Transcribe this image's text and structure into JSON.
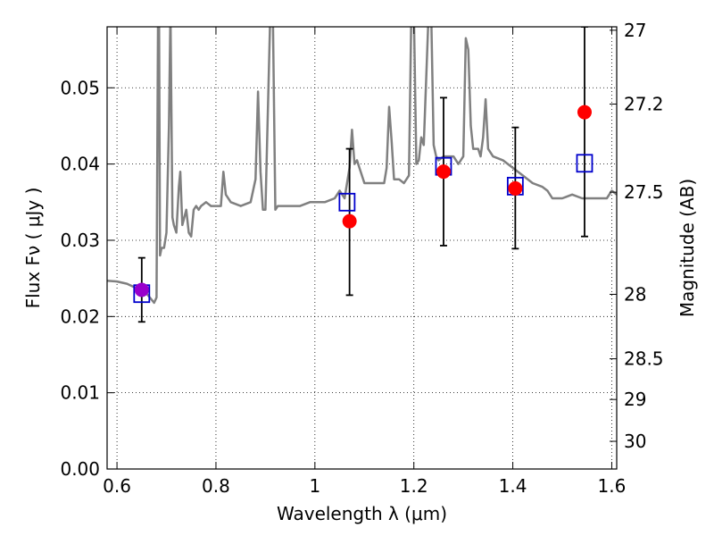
{
  "chart_data": {
    "type": "scatter",
    "xlabel": "Wavelength  λ (μm)",
    "ylabel": "Flux  Fν  ( μJy )",
    "y2label": "Magnitude (AB)",
    "xlim": [
      0.58,
      1.61
    ],
    "ylim": [
      0.0,
      0.058
    ],
    "x_ticks": [
      0.6,
      0.8,
      1.0,
      1.2,
      1.4,
      1.6
    ],
    "x_tick_labels": [
      "0.6",
      "0.8",
      "1",
      "1.2",
      "1.4",
      "1.6"
    ],
    "y_ticks": [
      0.0,
      0.01,
      0.02,
      0.03,
      0.04,
      0.05
    ],
    "y_tick_labels": [
      "0.00",
      "0.01",
      "0.02",
      "0.03",
      "0.04",
      "0.05"
    ],
    "mag_ticks": [
      27,
      27.2,
      27.5,
      28,
      28.5,
      29,
      30
    ],
    "mag_tick_labels": [
      "27",
      "27.2",
      "27.5",
      "28",
      "28.5",
      "29",
      "30"
    ],
    "grid": true,
    "colors": {
      "sed": "#808080",
      "observed": "#ff0000",
      "model": "#0000cc",
      "errorbar": "#000000",
      "overlap": "#9900cc"
    },
    "observed": {
      "x": [
        0.65,
        1.07,
        1.26,
        1.405,
        1.545
      ],
      "y": [
        0.0235,
        0.0325,
        0.039,
        0.0368,
        0.0468
      ],
      "yerr_low": [
        0.0042,
        0.0097,
        0.0097,
        0.0079,
        0.0163
      ],
      "yerr_high": [
        0.0042,
        0.0095,
        0.0097,
        0.008,
        0.0112
      ]
    },
    "model_photometry": {
      "x": [
        0.65,
        1.065,
        1.26,
        1.405,
        1.545
      ],
      "y": [
        0.023,
        0.035,
        0.0397,
        0.0371,
        0.0401
      ]
    },
    "sed": {
      "x": [
        0.58,
        0.6,
        0.62,
        0.64,
        0.66,
        0.67,
        0.675,
        0.68,
        0.683,
        0.685,
        0.687,
        0.69,
        0.695,
        0.7,
        0.705,
        0.708,
        0.712,
        0.715,
        0.72,
        0.725,
        0.728,
        0.732,
        0.74,
        0.745,
        0.75,
        0.755,
        0.76,
        0.765,
        0.77,
        0.78,
        0.79,
        0.8,
        0.81,
        0.815,
        0.82,
        0.83,
        0.85,
        0.87,
        0.88,
        0.885,
        0.89,
        0.895,
        0.9,
        0.91,
        0.915,
        0.92,
        0.925,
        0.93,
        0.95,
        0.97,
        0.99,
        1.0,
        1.02,
        1.04,
        1.05,
        1.06,
        1.07,
        1.075,
        1.08,
        1.085,
        1.09,
        1.1,
        1.12,
        1.14,
        1.145,
        1.15,
        1.155,
        1.16,
        1.17,
        1.18,
        1.19,
        1.195,
        1.2,
        1.205,
        1.21,
        1.215,
        1.22,
        1.23,
        1.235,
        1.24,
        1.245,
        1.25,
        1.26,
        1.27,
        1.28,
        1.29,
        1.3,
        1.305,
        1.31,
        1.315,
        1.32,
        1.33,
        1.335,
        1.34,
        1.345,
        1.35,
        1.36,
        1.38,
        1.4,
        1.42,
        1.44,
        1.46,
        1.47,
        1.48,
        1.5,
        1.52,
        1.54,
        1.56,
        1.58,
        1.59,
        1.6,
        1.61
      ],
      "y": [
        0.0247,
        0.0246,
        0.0243,
        0.0237,
        0.023,
        0.0222,
        0.0218,
        0.0225,
        0.06,
        0.06,
        0.028,
        0.029,
        0.029,
        0.031,
        0.045,
        0.06,
        0.033,
        0.032,
        0.031,
        0.037,
        0.039,
        0.032,
        0.034,
        0.031,
        0.0305,
        0.034,
        0.0345,
        0.034,
        0.0345,
        0.035,
        0.0345,
        0.0345,
        0.0345,
        0.039,
        0.036,
        0.035,
        0.0345,
        0.035,
        0.038,
        0.0495,
        0.039,
        0.034,
        0.034,
        0.06,
        0.06,
        0.034,
        0.0345,
        0.0345,
        0.0345,
        0.0345,
        0.035,
        0.035,
        0.035,
        0.0355,
        0.0365,
        0.0355,
        0.0395,
        0.0445,
        0.04,
        0.0405,
        0.0395,
        0.0375,
        0.0375,
        0.0375,
        0.0395,
        0.0475,
        0.043,
        0.038,
        0.038,
        0.0375,
        0.0385,
        0.06,
        0.06,
        0.04,
        0.0405,
        0.0435,
        0.0425,
        0.06,
        0.06,
        0.0425,
        0.041,
        0.0405,
        0.041,
        0.041,
        0.041,
        0.04,
        0.041,
        0.0565,
        0.055,
        0.045,
        0.042,
        0.042,
        0.041,
        0.0435,
        0.0485,
        0.042,
        0.041,
        0.0405,
        0.0395,
        0.0385,
        0.0375,
        0.037,
        0.0365,
        0.0355,
        0.0355,
        0.036,
        0.0355,
        0.0355,
        0.0355,
        0.0355,
        0.0365,
        0.036
      ]
    }
  }
}
